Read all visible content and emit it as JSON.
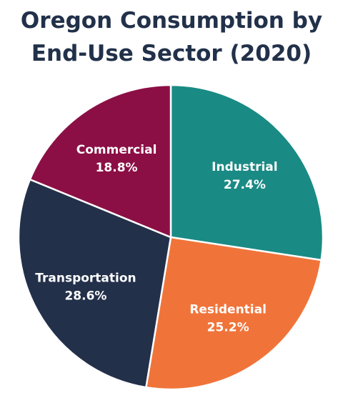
{
  "title_line1": "Oregon Consumption by",
  "title_line2": "End-Use Sector (2020)",
  "chart_data": {
    "type": "pie",
    "title": "Oregon Consumption by End-Use Sector (2020)",
    "start": "12 o'clock, clockwise",
    "slices": [
      {
        "name": "Industrial",
        "value": 27.4,
        "label": "27.4%",
        "color": "#1a8a84"
      },
      {
        "name": "Residential",
        "value": 25.2,
        "label": "25.2%",
        "color": "#f0743a"
      },
      {
        "name": "Transportation",
        "value": 28.6,
        "label": "28.6%",
        "color": "#23304a"
      },
      {
        "name": "Commercial",
        "value": 18.8,
        "label": "18.8%",
        "color": "#8b0f45"
      }
    ]
  }
}
